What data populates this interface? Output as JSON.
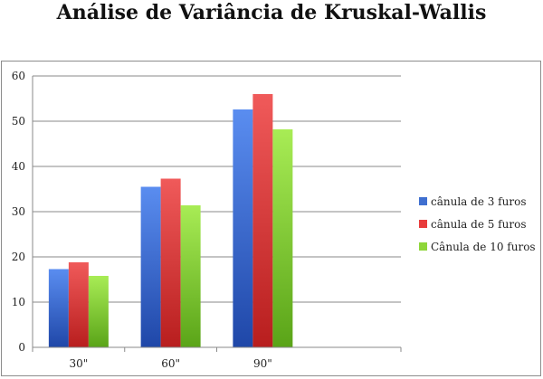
{
  "chart_data": {
    "type": "bar",
    "title": "Análise de Variância de Kruskal-Wallis",
    "categories": [
      "30\"",
      "60\"",
      "90\""
    ],
    "series": [
      {
        "name": "cânula de 3 furos",
        "values": [
          17.3,
          35.5,
          52.6
        ],
        "color": "#3f6fd0"
      },
      {
        "name": "cânula de 5 furos",
        "values": [
          18.8,
          37.3,
          56.0
        ],
        "color": "#e83c3c"
      },
      {
        "name": "Cânula de 10 furos",
        "values": [
          15.8,
          31.4,
          48.2
        ],
        "color": "#8fd63a"
      }
    ],
    "ylim": [
      0,
      60
    ],
    "yticks": [
      0,
      10,
      20,
      30,
      40,
      50,
      60
    ],
    "grid": true,
    "legend": "right"
  }
}
